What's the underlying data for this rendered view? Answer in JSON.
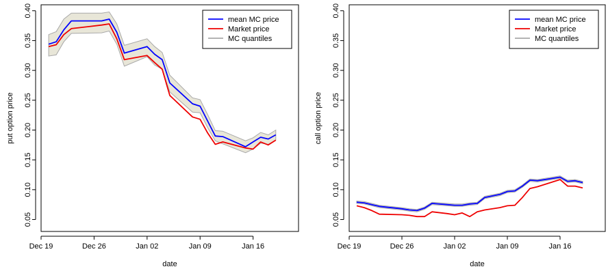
{
  "colors": {
    "mean": "#0000ff",
    "market": "#ee0000",
    "band_fill": "#e8e6d8",
    "band_stroke": "#a8a8a8"
  },
  "chart_data": [
    {
      "type": "line",
      "xlabel": "date",
      "ylabel": "put option price",
      "ylim": [
        0.03,
        0.41
      ],
      "xlim": [
        "2023-12-19",
        "2024-01-22"
      ],
      "x_ticks": [
        "Dec 19",
        "Dec 26",
        "Jan 02",
        "Jan 09",
        "Jan 16"
      ],
      "y_ticks": [
        "0.05",
        "0.10",
        "0.15",
        "0.20",
        "0.25",
        "0.30",
        "0.35",
        "0.40"
      ],
      "legend": {
        "position": "top-right",
        "entries": [
          "mean MC price",
          "Market price",
          "MC quantiles"
        ]
      },
      "x": [
        "2023-12-20",
        "2023-12-21",
        "2023-12-22",
        "2023-12-23",
        "2023-12-27",
        "2023-12-28",
        "2023-12-29",
        "2023-12-30",
        "2024-01-02",
        "2024-01-03",
        "2024-01-04",
        "2024-01-05",
        "2024-01-08",
        "2024-01-09",
        "2024-01-10",
        "2024-01-11",
        "2024-01-12",
        "2024-01-15",
        "2024-01-16",
        "2024-01-17",
        "2024-01-18",
        "2024-01-19"
      ],
      "series": [
        {
          "name": "mean MC price",
          "values": [
            0.344,
            0.348,
            0.368,
            0.383,
            0.383,
            0.386,
            0.364,
            0.329,
            0.34,
            0.327,
            0.318,
            0.279,
            0.244,
            0.24,
            0.215,
            0.19,
            0.189,
            0.172,
            0.18,
            0.188,
            0.185,
            0.192
          ]
        },
        {
          "name": "Market price",
          "values": [
            0.34,
            0.343,
            0.36,
            0.37,
            0.376,
            0.378,
            0.353,
            0.318,
            0.325,
            0.313,
            0.302,
            0.258,
            0.222,
            0.218,
            0.195,
            0.176,
            0.18,
            0.17,
            0.168,
            0.18,
            0.175,
            0.183
          ]
        },
        {
          "name": "MC quantiles",
          "lower": [
            0.324,
            0.326,
            0.348,
            0.362,
            0.363,
            0.366,
            0.344,
            0.307,
            0.323,
            0.309,
            0.302,
            0.264,
            0.23,
            0.229,
            0.204,
            0.182,
            0.177,
            0.162,
            0.168,
            0.178,
            0.176,
            0.183
          ],
          "upper": [
            0.36,
            0.365,
            0.386,
            0.396,
            0.396,
            0.398,
            0.378,
            0.342,
            0.353,
            0.34,
            0.33,
            0.292,
            0.254,
            0.251,
            0.226,
            0.199,
            0.198,
            0.182,
            0.187,
            0.196,
            0.192,
            0.2
          ]
        }
      ]
    },
    {
      "type": "line",
      "xlabel": "date",
      "ylabel": "call option price",
      "ylim": [
        0.03,
        0.41
      ],
      "xlim": [
        "2023-12-19",
        "2024-01-22"
      ],
      "x_ticks": [
        "Dec 19",
        "Dec 26",
        "Jan 02",
        "Jan 09",
        "Jan 16"
      ],
      "y_ticks": [
        "0.05",
        "0.10",
        "0.15",
        "0.20",
        "0.25",
        "0.30",
        "0.35",
        "0.40"
      ],
      "legend": {
        "position": "top-right",
        "entries": [
          "mean MC price",
          "Market price",
          "MC quantiles"
        ]
      },
      "x": [
        "2023-12-20",
        "2023-12-21",
        "2023-12-22",
        "2023-12-23",
        "2023-12-26",
        "2023-12-27",
        "2023-12-28",
        "2023-12-29",
        "2023-12-30",
        "2024-01-01",
        "2024-01-02",
        "2024-01-03",
        "2024-01-04",
        "2024-01-05",
        "2024-01-06",
        "2024-01-08",
        "2024-01-09",
        "2024-01-10",
        "2024-01-11",
        "2024-01-12",
        "2024-01-13",
        "2024-01-16",
        "2024-01-17",
        "2024-01-18",
        "2024-01-19"
      ],
      "series": [
        {
          "name": "mean MC price",
          "values": [
            0.079,
            0.078,
            0.075,
            0.072,
            0.068,
            0.066,
            0.065,
            0.069,
            0.077,
            0.075,
            0.074,
            0.074,
            0.076,
            0.077,
            0.087,
            0.092,
            0.097,
            0.098,
            0.106,
            0.116,
            0.115,
            0.121,
            0.114,
            0.115,
            0.112
          ]
        },
        {
          "name": "Market price",
          "values": [
            0.073,
            0.07,
            0.065,
            0.059,
            0.058,
            0.057,
            0.055,
            0.055,
            0.063,
            0.06,
            0.058,
            0.061,
            0.055,
            0.063,
            0.066,
            0.07,
            0.073,
            0.074,
            0.087,
            0.102,
            0.105,
            0.117,
            0.106,
            0.106,
            0.103
          ]
        },
        {
          "name": "MC quantiles",
          "lower": [
            0.077,
            0.076,
            0.073,
            0.07,
            0.066,
            0.064,
            0.063,
            0.067,
            0.075,
            0.073,
            0.072,
            0.072,
            0.074,
            0.075,
            0.085,
            0.09,
            0.095,
            0.096,
            0.104,
            0.114,
            0.113,
            0.119,
            0.112,
            0.113,
            0.11
          ],
          "upper": [
            0.081,
            0.08,
            0.077,
            0.074,
            0.07,
            0.068,
            0.067,
            0.071,
            0.079,
            0.077,
            0.076,
            0.076,
            0.078,
            0.079,
            0.089,
            0.094,
            0.099,
            0.1,
            0.108,
            0.118,
            0.117,
            0.123,
            0.116,
            0.117,
            0.114
          ]
        }
      ]
    }
  ]
}
